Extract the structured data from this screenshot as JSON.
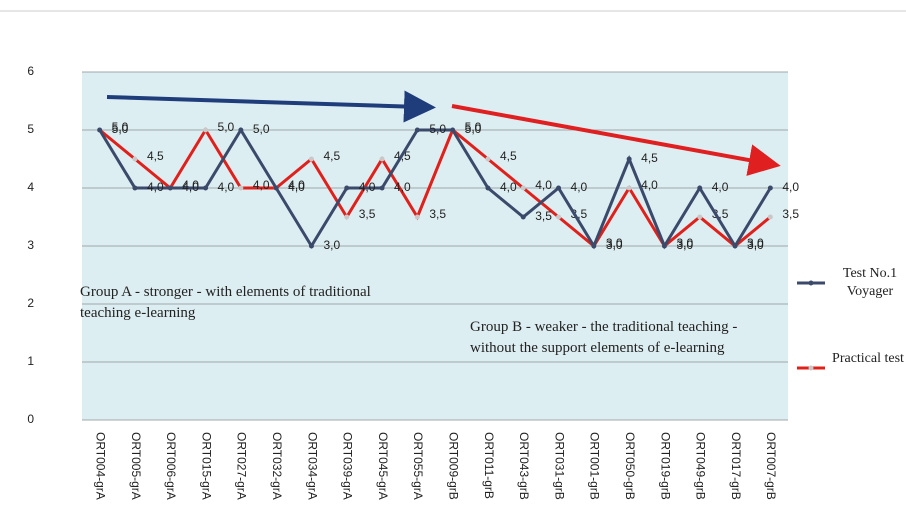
{
  "chart_data": {
    "type": "line",
    "categories": [
      "ORT004-grA",
      "ORT005-grA",
      "ORT006-grA",
      "ORT015-grA",
      "ORT027-grA",
      "ORT032-grA",
      "ORT034-grA",
      "ORT039-grA",
      "ORT045-grA",
      "ORT055-grA",
      "ORT009-grB",
      "ORT011-grB",
      "ORT043-grB",
      "ORT031-grB",
      "ORT001-grB",
      "ORT050-grB",
      "ORT019-grB",
      "ORT049-grB",
      "ORT017-grB",
      "ORT007-grB"
    ],
    "series": [
      {
        "name": "Test No.1 Voyager",
        "color": "#3b4a6b",
        "values": [
          5,
          4,
          4,
          4,
          5,
          4,
          3,
          4,
          4,
          5,
          5,
          4,
          3.5,
          4,
          3,
          4.5,
          3,
          4,
          3,
          4
        ],
        "value_labels": [
          "5,0",
          "4,0",
          "4,0",
          "4,0",
          "5,0",
          "4,0",
          "3,0",
          "4,0",
          "4,0",
          "5,0",
          "5,0",
          "4,0",
          "3,5",
          "4,0",
          "3,0",
          "4,5",
          "3,0",
          "4,0",
          "3,0",
          "4,0"
        ]
      },
      {
        "name": "Practical test",
        "color": "#e0201b",
        "values": [
          5,
          4.5,
          4,
          5,
          4,
          4,
          4.5,
          3.5,
          4.5,
          3.5,
          5,
          4.5,
          4,
          3.5,
          3,
          4,
          3,
          3.5,
          3,
          3.5
        ],
        "value_labels": [
          "5,0",
          "4,5",
          "4,0",
          "5,0",
          "4,0",
          "4,0",
          "4,5",
          "3,5",
          "4,5",
          "3,5",
          "5,0",
          "4,5",
          "4,0",
          "3,5",
          "3,0",
          "4,0",
          "3,0",
          "3,5",
          "3,0",
          "3,5"
        ]
      }
    ],
    "ylim": [
      0,
      6
    ],
    "yticks": [
      0,
      1,
      2,
      3,
      4,
      5,
      6
    ],
    "grid": true,
    "annotations": [
      "Group A - stronger - with elements of traditional teaching e-learning",
      "Group B - weaker - the traditional teaching - without the support elements of e-learning"
    ]
  }
}
